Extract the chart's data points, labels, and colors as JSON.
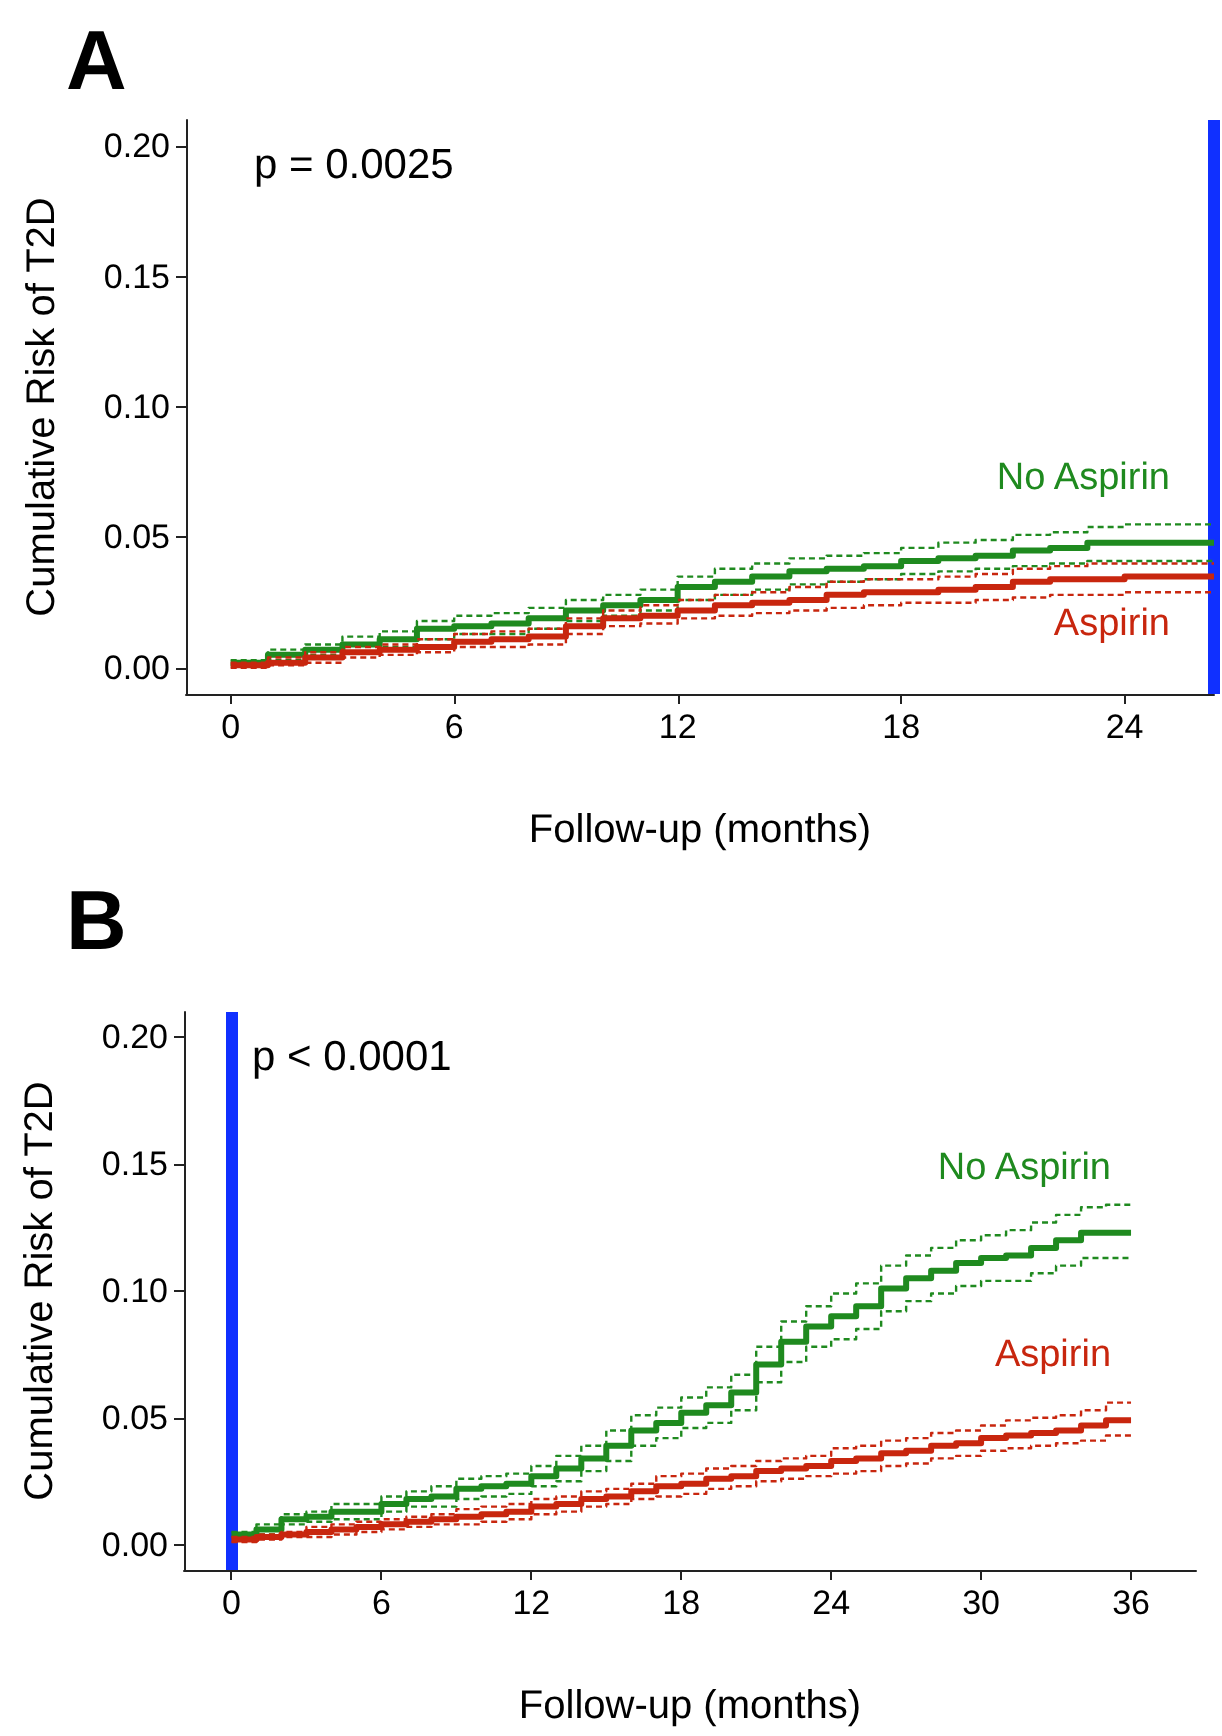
{
  "chart_data": [
    {
      "type": "step",
      "title": "A",
      "xlabel": "Follow-up (months)",
      "ylabel": "Cumulative Risk of T2D",
      "annotations": [
        "p = 0.0025"
      ],
      "legend": false,
      "grid": false,
      "xlim": [
        -1.2,
        26.4
      ],
      "xticks": [
        0,
        6,
        12,
        18,
        24
      ],
      "ylim": [
        -0.01,
        0.21
      ],
      "yticks": [
        {
          "value": 0,
          "label": "0.00"
        },
        {
          "value": 0.05,
          "label": "0.05"
        },
        {
          "value": 0.1,
          "label": "0.10"
        },
        {
          "value": 0.15,
          "label": "0.15"
        },
        {
          "value": 0.2,
          "label": "0.20"
        }
      ],
      "x": [
        0,
        1,
        2,
        3,
        4,
        5,
        6,
        7,
        8,
        9,
        10,
        11,
        12,
        13,
        14,
        15,
        16,
        17,
        18,
        19,
        20,
        21,
        22,
        23,
        24,
        26.4
      ],
      "series": [
        {
          "name": "No Aspirin",
          "color": "#1f8a1f",
          "values": [
            0.002,
            0.005,
            0.007,
            0.009,
            0.011,
            0.015,
            0.016,
            0.017,
            0.019,
            0.022,
            0.024,
            0.026,
            0.031,
            0.033,
            0.035,
            0.037,
            0.038,
            0.039,
            0.041,
            0.042,
            0.043,
            0.045,
            0.046,
            0.048,
            0.048,
            0.048
          ]
        },
        {
          "color": "#1f8a1f",
          "line_style": "dashed",
          "values": [
            0.003,
            0.007,
            0.009,
            0.012,
            0.014,
            0.018,
            0.02,
            0.021,
            0.023,
            0.026,
            0.028,
            0.03,
            0.035,
            0.038,
            0.04,
            0.042,
            0.043,
            0.044,
            0.046,
            0.048,
            0.049,
            0.051,
            0.052,
            0.054,
            0.055,
            0.055
          ]
        },
        {
          "color": "#1f8a1f",
          "line_style": "dashed",
          "values": [
            0.001,
            0.003,
            0.005,
            0.006,
            0.008,
            0.011,
            0.013,
            0.013,
            0.015,
            0.018,
            0.02,
            0.022,
            0.026,
            0.028,
            0.03,
            0.032,
            0.033,
            0.034,
            0.036,
            0.037,
            0.038,
            0.039,
            0.04,
            0.041,
            0.041,
            0.041
          ]
        },
        {
          "name": "Aspirin",
          "color": "#c8260e",
          "values": [
            0.001,
            0.002,
            0.004,
            0.006,
            0.007,
            0.008,
            0.01,
            0.011,
            0.012,
            0.016,
            0.019,
            0.02,
            0.022,
            0.024,
            0.025,
            0.026,
            0.028,
            0.029,
            0.029,
            0.03,
            0.031,
            0.033,
            0.034,
            0.034,
            0.035,
            0.035
          ]
        },
        {
          "color": "#c8260e",
          "line_style": "dashed",
          "values": [
            0.002,
            0.004,
            0.006,
            0.008,
            0.009,
            0.011,
            0.013,
            0.014,
            0.015,
            0.019,
            0.022,
            0.024,
            0.026,
            0.028,
            0.029,
            0.031,
            0.033,
            0.034,
            0.034,
            0.035,
            0.036,
            0.038,
            0.039,
            0.04,
            0.04,
            0.04
          ]
        },
        {
          "color": "#c8260e",
          "line_style": "dashed",
          "values": [
            0.0,
            0.001,
            0.002,
            0.004,
            0.005,
            0.006,
            0.008,
            0.008,
            0.009,
            0.013,
            0.016,
            0.017,
            0.019,
            0.02,
            0.021,
            0.022,
            0.023,
            0.024,
            0.025,
            0.025,
            0.026,
            0.027,
            0.028,
            0.028,
            0.029,
            0.029
          ]
        }
      ],
      "ref_lines": [
        {
          "axis": "x",
          "value": 26.4,
          "color": "#1030ff"
        }
      ]
    },
    {
      "type": "step",
      "title": "B",
      "xlabel": "Follow-up (months)",
      "ylabel": "Cumulative Risk of T2D",
      "annotations": [
        "p < 0.0001"
      ],
      "legend": false,
      "grid": false,
      "xlim": [
        -1.9,
        38.6
      ],
      "xticks": [
        0,
        6,
        12,
        18,
        24,
        30,
        36
      ],
      "ylim": [
        -0.01,
        0.21
      ],
      "yticks": [
        {
          "value": 0,
          "label": "0.00"
        },
        {
          "value": 0.05,
          "label": "0.05"
        },
        {
          "value": 0.1,
          "label": "0.10"
        },
        {
          "value": 0.15,
          "label": "0.15"
        },
        {
          "value": 0.2,
          "label": "0.20"
        }
      ],
      "x": [
        0,
        1,
        2,
        3,
        4,
        5,
        6,
        7,
        8,
        9,
        10,
        11,
        12,
        13,
        14,
        15,
        16,
        17,
        18,
        19,
        20,
        21,
        22,
        23,
        24,
        25,
        26,
        27,
        28,
        29,
        30,
        31,
        32,
        33,
        34,
        35,
        36
      ],
      "series": [
        {
          "name": "No Aspirin",
          "color": "#1f8a1f",
          "values": [
            0.004,
            0.006,
            0.01,
            0.011,
            0.013,
            0.013,
            0.016,
            0.018,
            0.019,
            0.022,
            0.023,
            0.024,
            0.027,
            0.03,
            0.034,
            0.039,
            0.045,
            0.048,
            0.052,
            0.055,
            0.06,
            0.071,
            0.08,
            0.086,
            0.09,
            0.094,
            0.101,
            0.105,
            0.108,
            0.111,
            0.113,
            0.114,
            0.117,
            0.12,
            0.123,
            0.123,
            0.123
          ]
        },
        {
          "color": "#1f8a1f",
          "line_style": "dashed",
          "values": [
            0.005,
            0.008,
            0.012,
            0.013,
            0.016,
            0.016,
            0.019,
            0.021,
            0.023,
            0.026,
            0.027,
            0.028,
            0.031,
            0.035,
            0.039,
            0.045,
            0.051,
            0.054,
            0.058,
            0.062,
            0.067,
            0.078,
            0.088,
            0.094,
            0.099,
            0.103,
            0.11,
            0.114,
            0.117,
            0.12,
            0.122,
            0.124,
            0.127,
            0.13,
            0.133,
            0.134,
            0.134
          ]
        },
        {
          "color": "#1f8a1f",
          "line_style": "dashed",
          "values": [
            0.003,
            0.004,
            0.008,
            0.009,
            0.01,
            0.01,
            0.013,
            0.015,
            0.015,
            0.018,
            0.019,
            0.02,
            0.023,
            0.025,
            0.029,
            0.033,
            0.039,
            0.042,
            0.046,
            0.048,
            0.053,
            0.064,
            0.072,
            0.078,
            0.081,
            0.085,
            0.092,
            0.096,
            0.099,
            0.102,
            0.104,
            0.104,
            0.107,
            0.11,
            0.113,
            0.113,
            0.113
          ]
        },
        {
          "name": "Aspirin",
          "color": "#c8260e",
          "values": [
            0.002,
            0.003,
            0.004,
            0.005,
            0.006,
            0.007,
            0.008,
            0.009,
            0.01,
            0.011,
            0.012,
            0.013,
            0.015,
            0.016,
            0.018,
            0.019,
            0.021,
            0.023,
            0.024,
            0.026,
            0.027,
            0.029,
            0.03,
            0.031,
            0.033,
            0.034,
            0.036,
            0.037,
            0.039,
            0.04,
            0.042,
            0.043,
            0.044,
            0.045,
            0.047,
            0.049,
            0.049
          ]
        },
        {
          "color": "#c8260e",
          "line_style": "dashed",
          "values": [
            0.003,
            0.004,
            0.005,
            0.007,
            0.008,
            0.009,
            0.01,
            0.011,
            0.012,
            0.014,
            0.015,
            0.016,
            0.018,
            0.019,
            0.021,
            0.022,
            0.024,
            0.027,
            0.028,
            0.03,
            0.031,
            0.033,
            0.034,
            0.035,
            0.038,
            0.039,
            0.041,
            0.042,
            0.044,
            0.045,
            0.047,
            0.049,
            0.05,
            0.051,
            0.053,
            0.056,
            0.056
          ]
        },
        {
          "color": "#c8260e",
          "line_style": "dashed",
          "values": [
            0.001,
            0.002,
            0.003,
            0.003,
            0.004,
            0.005,
            0.006,
            0.007,
            0.008,
            0.008,
            0.009,
            0.01,
            0.012,
            0.013,
            0.015,
            0.016,
            0.018,
            0.019,
            0.02,
            0.022,
            0.023,
            0.025,
            0.026,
            0.027,
            0.028,
            0.029,
            0.031,
            0.032,
            0.034,
            0.035,
            0.037,
            0.038,
            0.039,
            0.04,
            0.041,
            0.043,
            0.043
          ]
        }
      ],
      "ref_lines": [
        {
          "axis": "x",
          "value": 0,
          "color": "#1030ff"
        }
      ]
    }
  ]
}
